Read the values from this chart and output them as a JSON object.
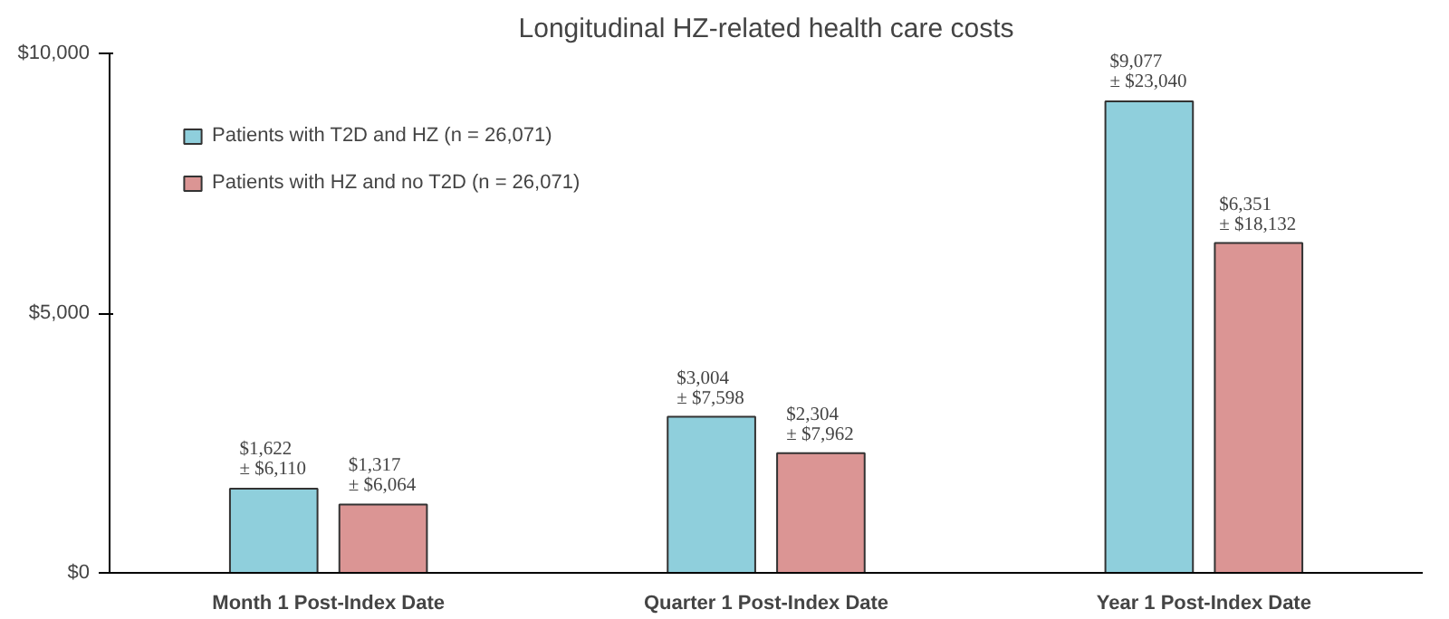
{
  "chart_data": {
    "type": "bar",
    "title": "Longitudinal HZ-related health care costs",
    "categories": [
      "Month 1 Post-Index Date",
      "Quarter 1 Post-Index Date",
      "Year 1 Post-Index Date"
    ],
    "series": [
      {
        "name": "Patients with T2D and HZ (n = 26,071)",
        "color": "#8fcfdc",
        "values": [
          1622,
          3004,
          9077
        ],
        "value_labels": [
          "$1,622\n± $6,110",
          "$3,004\n± $7,598",
          "$9,077\n± $23,040"
        ]
      },
      {
        "name": "Patients with HZ and no T2D (n = 26,071)",
        "color": "#db9594",
        "values": [
          1317,
          2304,
          6351
        ],
        "value_labels": [
          "$1,317\n± $6,064",
          "$2,304\n± $7,962",
          "$6,351\n± $18,132"
        ]
      }
    ],
    "ylim": [
      0,
      10000
    ],
    "yticks": [
      {
        "value": 0,
        "label": "$0"
      },
      {
        "value": 5000,
        "label": "$5,000"
      },
      {
        "value": 10000,
        "label": "$10,000"
      }
    ],
    "grid": false,
    "legend": "top left"
  }
}
